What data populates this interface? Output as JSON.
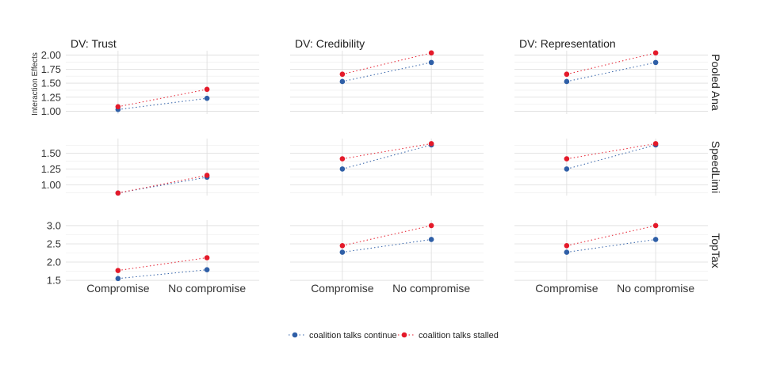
{
  "figure": {
    "ylabel": "Interaction Effects",
    "col_titles": [
      "DV: Trust",
      "DV: Credibility",
      "DV: Representation"
    ],
    "row_labels": [
      "Pooled Ana",
      "SpeedLimi",
      "TopTax"
    ],
    "categories": [
      "Compromise",
      "No compromise"
    ],
    "legend": [
      {
        "label": "coalition talks continue",
        "color": "#2f5fa7"
      },
      {
        "label": "coalition talks stalled",
        "color": "#e41a2a"
      }
    ],
    "colors": {
      "grid": "#dcdcdc",
      "text": "#333333",
      "continue": "#2f5fa7",
      "stalled": "#e41a2a"
    }
  },
  "chart_data": [
    {
      "type": "line",
      "row": "Pooled Ana",
      "col": "DV: Trust",
      "categories": [
        "Compromise",
        "No compromise"
      ],
      "ylim": [
        0.95,
        2.08
      ],
      "yticks": [
        "1.00",
        "1.25",
        "1.50",
        "1.75",
        "2.00"
      ],
      "yticks_shown": true,
      "series": [
        {
          "name": "coalition talks continue",
          "values": [
            1.03,
            1.23
          ]
        },
        {
          "name": "coalition talks stalled",
          "values": [
            1.08,
            1.39
          ]
        }
      ]
    },
    {
      "type": "line",
      "row": "Pooled Ana",
      "col": "DV: Credibility",
      "categories": [
        "Compromise",
        "No compromise"
      ],
      "ylim": [
        0.95,
        2.08
      ],
      "yticks": [
        "1.00",
        "1.25",
        "1.50",
        "1.75",
        "2.00"
      ],
      "yticks_shown": false,
      "series": [
        {
          "name": "coalition talks continue",
          "values": [
            1.53,
            1.87
          ]
        },
        {
          "name": "coalition talks stalled",
          "values": [
            1.66,
            2.04
          ]
        }
      ]
    },
    {
      "type": "line",
      "row": "Pooled Ana",
      "col": "DV: Representation",
      "categories": [
        "Compromise",
        "No compromise"
      ],
      "ylim": [
        0.95,
        2.08
      ],
      "yticks": [
        "1.00",
        "1.25",
        "1.50",
        "1.75",
        "2.00"
      ],
      "yticks_shown": false,
      "series": [
        {
          "name": "coalition talks continue",
          "values": [
            1.53,
            1.87
          ]
        },
        {
          "name": "coalition talks stalled",
          "values": [
            1.66,
            2.04
          ]
        }
      ]
    },
    {
      "type": "line",
      "row": "SpeedLimi",
      "col": "DV: Trust",
      "categories": [
        "Compromise",
        "No compromise"
      ],
      "ylim": [
        0.83,
        1.73
      ],
      "yticks": [
        "1.00",
        "1.25",
        "1.50"
      ],
      "yticks_shown": true,
      "series": [
        {
          "name": "coalition talks continue",
          "values": [
            0.87,
            1.12
          ]
        },
        {
          "name": "coalition talks stalled",
          "values": [
            0.87,
            1.15
          ]
        }
      ]
    },
    {
      "type": "line",
      "row": "SpeedLimi",
      "col": "DV: Credibility",
      "categories": [
        "Compromise",
        "No compromise"
      ],
      "ylim": [
        0.83,
        1.73
      ],
      "yticks": [
        "1.00",
        "1.25",
        "1.50"
      ],
      "yticks_shown": false,
      "series": [
        {
          "name": "coalition talks continue",
          "values": [
            1.25,
            1.63
          ]
        },
        {
          "name": "coalition talks stalled",
          "values": [
            1.41,
            1.65
          ]
        }
      ]
    },
    {
      "type": "line",
      "row": "SpeedLimi",
      "col": "DV: Representation",
      "categories": [
        "Compromise",
        "No compromise"
      ],
      "ylim": [
        0.83,
        1.73
      ],
      "yticks": [
        "1.00",
        "1.25",
        "1.50"
      ],
      "yticks_shown": false,
      "series": [
        {
          "name": "coalition talks continue",
          "values": [
            1.25,
            1.63
          ]
        },
        {
          "name": "coalition talks stalled",
          "values": [
            1.41,
            1.65
          ]
        }
      ]
    },
    {
      "type": "line",
      "row": "TopTax",
      "col": "DV: Trust",
      "categories": [
        "Compromise",
        "No compromise"
      ],
      "ylim": [
        1.48,
        3.15
      ],
      "yticks": [
        "1.5",
        "2.0",
        "2.5",
        "3.0"
      ],
      "yticks_shown": true,
      "series": [
        {
          "name": "coalition talks continue",
          "values": [
            1.55,
            1.79
          ]
        },
        {
          "name": "coalition talks stalled",
          "values": [
            1.77,
            2.12
          ]
        }
      ]
    },
    {
      "type": "line",
      "row": "TopTax",
      "col": "DV: Credibility",
      "categories": [
        "Compromise",
        "No compromise"
      ],
      "ylim": [
        1.48,
        3.15
      ],
      "yticks": [
        "1.5",
        "2.0",
        "2.5",
        "3.0"
      ],
      "yticks_shown": false,
      "series": [
        {
          "name": "coalition talks continue",
          "values": [
            2.27,
            2.62
          ]
        },
        {
          "name": "coalition talks stalled",
          "values": [
            2.45,
            3.0
          ]
        }
      ]
    },
    {
      "type": "line",
      "row": "TopTax",
      "col": "DV: Representation",
      "categories": [
        "Compromise",
        "No compromise"
      ],
      "ylim": [
        1.48,
        3.15
      ],
      "yticks": [
        "1.5",
        "2.0",
        "2.5",
        "3.0"
      ],
      "yticks_shown": false,
      "series": [
        {
          "name": "coalition talks continue",
          "values": [
            2.27,
            2.62
          ]
        },
        {
          "name": "coalition talks stalled",
          "values": [
            2.45,
            3.0
          ]
        }
      ]
    }
  ]
}
